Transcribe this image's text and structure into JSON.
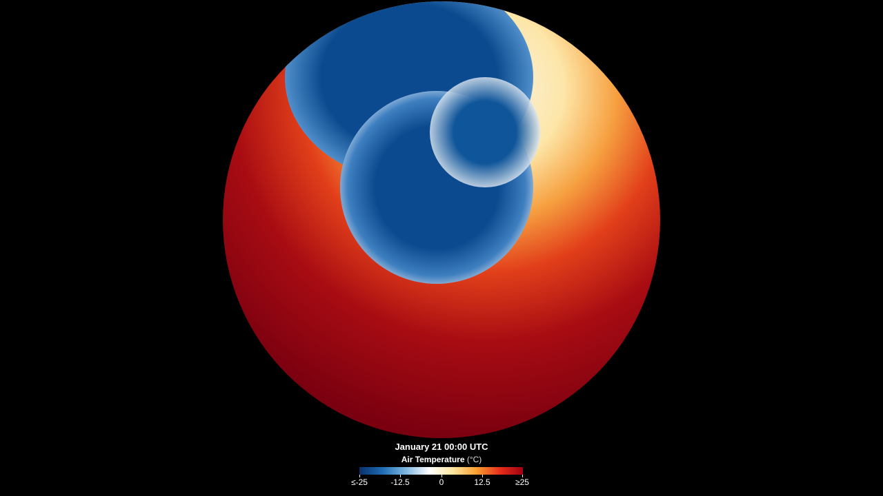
{
  "timestamp": "January 21 00:00 UTC",
  "legend": {
    "title": "Air Temperature",
    "unit": "(°C)",
    "ticks": [
      "≤-25",
      "-12.5",
      "0",
      "12.5",
      "≥25"
    ],
    "colors": [
      "#08306b",
      "#1f6db5",
      "#ffffff",
      "#f8a030",
      "#a00010"
    ]
  }
}
